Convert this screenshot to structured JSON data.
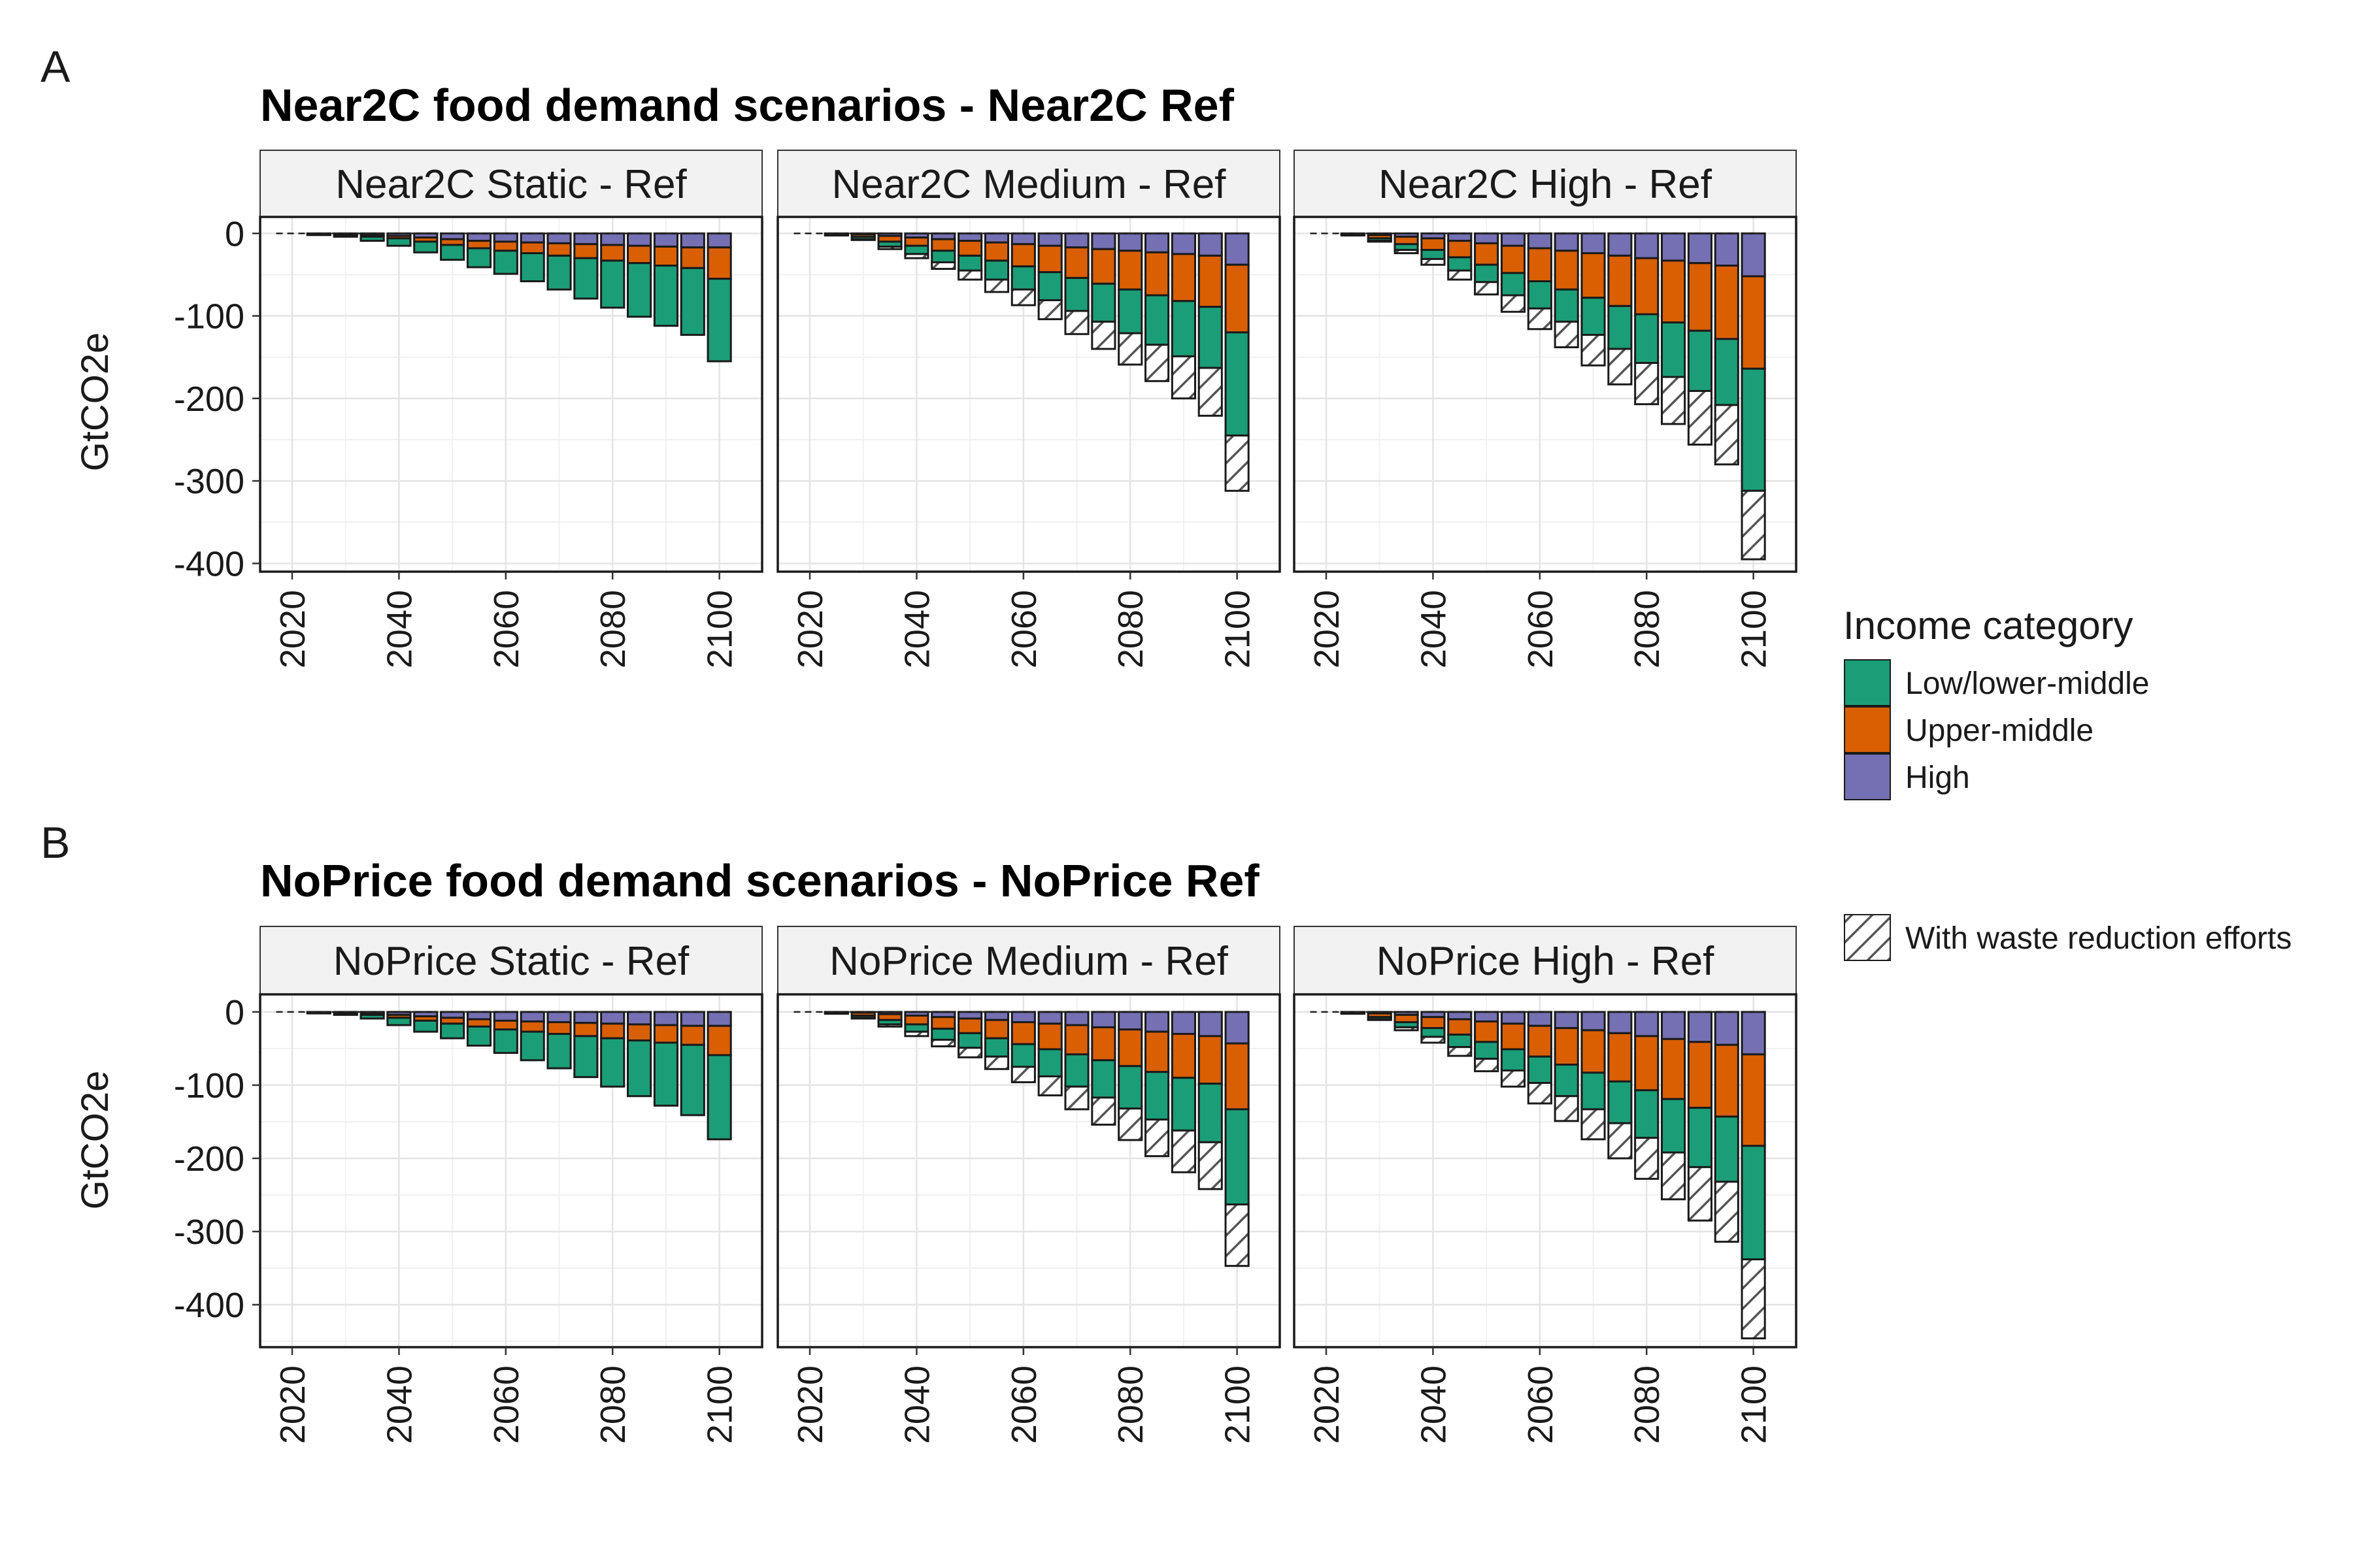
{
  "chart_data": [
    {
      "type": "bar",
      "stacked": true,
      "panel_label": "A",
      "title": "Near2C food demand scenarios - Near2C Ref",
      "ylabel": "GtCO2e",
      "xlabel": "",
      "ylim": [
        -410,
        20
      ],
      "yticks": [
        0,
        -100,
        -200,
        -300,
        -400
      ],
      "xticks": [
        2020,
        2040,
        2060,
        2080,
        2100
      ],
      "grid": true,
      "x": [
        2025,
        2030,
        2035,
        2040,
        2045,
        2050,
        2055,
        2060,
        2065,
        2070,
        2075,
        2080,
        2085,
        2090,
        2095,
        2100
      ],
      "facets": [
        {
          "strip": "Near2C Static - Ref",
          "series": [
            {
              "name": "Low/lower-middle",
              "values": [
                -1,
                -2,
                -5,
                -9,
                -13,
                -18,
                -23,
                -28,
                -34,
                -41,
                -49,
                -57,
                -65,
                -73,
                -81,
                -100
              ]
            },
            {
              "name": "Upper-middle",
              "values": [
                -0.5,
                -1,
                -2,
                -3,
                -5,
                -7,
                -9,
                -11,
                -13,
                -15,
                -17,
                -19,
                -21,
                -23,
                -25,
                -38
              ]
            },
            {
              "name": "High",
              "values": [
                -0.5,
                -1,
                -2,
                -3,
                -5,
                -7,
                -9,
                -10,
                -11,
                -12,
                -13,
                -14,
                -15,
                -16,
                -17,
                -17
              ]
            },
            {
              "name": "With waste reduction efforts",
              "values": [
                0,
                0,
                0,
                0,
                0,
                0,
                0,
                0,
                0,
                0,
                0,
                0,
                0,
                0,
                0,
                0
              ]
            }
          ]
        },
        {
          "strip": "Near2C Medium - Ref",
          "series": [
            {
              "name": "Low/lower-middle",
              "values": [
                -1,
                -3,
                -6,
                -10,
                -14,
                -18,
                -23,
                -28,
                -34,
                -40,
                -46,
                -53,
                -60,
                -67,
                -74,
                -125
              ]
            },
            {
              "name": "Upper-middle",
              "values": [
                -1,
                -3,
                -7,
                -10,
                -14,
                -18,
                -22,
                -27,
                -32,
                -37,
                -42,
                -47,
                -52,
                -57,
                -62,
                -82
              ]
            },
            {
              "name": "High",
              "values": [
                -0.5,
                -1,
                -3,
                -5,
                -7,
                -9,
                -11,
                -13,
                -15,
                -17,
                -19,
                -21,
                -23,
                -25,
                -27,
                -38
              ]
            },
            {
              "name": "With waste reduction efforts",
              "values": [
                0,
                -1,
                -3,
                -5,
                -8,
                -11,
                -15,
                -19,
                -23,
                -28,
                -33,
                -38,
                -44,
                -51,
                -58,
                -67
              ]
            }
          ]
        },
        {
          "strip": "Near2C High - Ref",
          "series": [
            {
              "name": "Low/lower-middle",
              "values": [
                -1,
                -3,
                -7,
                -11,
                -16,
                -21,
                -27,
                -33,
                -39,
                -45,
                -52,
                -59,
                -66,
                -73,
                -80,
                -148
              ]
            },
            {
              "name": "Upper-middle",
              "values": [
                -1,
                -4,
                -9,
                -14,
                -20,
                -26,
                -33,
                -40,
                -47,
                -54,
                -61,
                -68,
                -75,
                -82,
                -89,
                -112
              ]
            },
            {
              "name": "High",
              "values": [
                -0.5,
                -2,
                -4,
                -6,
                -9,
                -12,
                -15,
                -18,
                -21,
                -24,
                -27,
                -30,
                -33,
                -36,
                -39,
                -52
              ]
            },
            {
              "name": "With waste reduction efforts",
              "values": [
                0,
                -1,
                -4,
                -7,
                -11,
                -15,
                -20,
                -25,
                -31,
                -37,
                -43,
                -50,
                -57,
                -65,
                -72,
                -83
              ]
            }
          ]
        }
      ],
      "legend": {
        "title": "Income category",
        "position": "right",
        "entries": [
          "Low/lower-middle",
          "Upper-middle",
          "High"
        ],
        "pattern_entry": "With waste reduction efforts"
      },
      "colors": {
        "Low/lower-middle": "#1b9e77",
        "Upper-middle": "#d95f02",
        "High": "#7570b3"
      }
    },
    {
      "type": "bar",
      "stacked": true,
      "panel_label": "B",
      "title": "NoPrice food demand scenarios - NoPrice Ref",
      "ylabel": "GtCO2e",
      "xlabel": "",
      "ylim": [
        -458,
        24
      ],
      "yticks": [
        0,
        -100,
        -200,
        -300,
        -400
      ],
      "xticks": [
        2020,
        2040,
        2060,
        2080,
        2100
      ],
      "grid": true,
      "x": [
        2025,
        2030,
        2035,
        2040,
        2045,
        2050,
        2055,
        2060,
        2065,
        2070,
        2075,
        2080,
        2085,
        2090,
        2095,
        2100
      ],
      "facets": [
        {
          "strip": "NoPrice Static - Ref",
          "series": [
            {
              "name": "Low/lower-middle",
              "values": [
                -1,
                -2,
                -5,
                -10,
                -15,
                -20,
                -26,
                -32,
                -39,
                -47,
                -56,
                -66,
                -76,
                -86,
                -96,
                -115
              ]
            },
            {
              "name": "Upper-middle",
              "values": [
                -0.5,
                -1,
                -2,
                -4,
                -6,
                -8,
                -10,
                -12,
                -14,
                -16,
                -18,
                -20,
                -22,
                -24,
                -26,
                -40
              ]
            },
            {
              "name": "High",
              "values": [
                -0.5,
                -1,
                -2,
                -4,
                -6,
                -8,
                -10,
                -12,
                -13,
                -14,
                -15,
                -16,
                -17,
                -18,
                -19,
                -19
              ]
            },
            {
              "name": "With waste reduction efforts",
              "values": [
                0,
                0,
                0,
                0,
                0,
                0,
                0,
                0,
                0,
                0,
                0,
                0,
                0,
                0,
                0,
                0
              ]
            }
          ]
        },
        {
          "strip": "NoPrice Medium - Ref",
          "series": [
            {
              "name": "Low/lower-middle",
              "values": [
                -1,
                -3,
                -6,
                -10,
                -15,
                -20,
                -25,
                -31,
                -37,
                -44,
                -51,
                -58,
                -65,
                -72,
                -80,
                -130
              ]
            },
            {
              "name": "Upper-middle",
              "values": [
                -1,
                -4,
                -8,
                -12,
                -16,
                -20,
                -25,
                -30,
                -35,
                -40,
                -45,
                -50,
                -55,
                -60,
                -65,
                -90
              ]
            },
            {
              "name": "High",
              "values": [
                -0.5,
                -1,
                -3,
                -5,
                -7,
                -9,
                -11,
                -14,
                -16,
                -18,
                -21,
                -24,
                -27,
                -30,
                -33,
                -43
              ]
            },
            {
              "name": "With waste reduction efforts",
              "values": [
                0,
                -1,
                -3,
                -6,
                -9,
                -13,
                -17,
                -21,
                -26,
                -31,
                -37,
                -43,
                -50,
                -57,
                -64,
                -84
              ]
            }
          ]
        },
        {
          "strip": "NoPrice High - Ref",
          "series": [
            {
              "name": "Low/lower-middle",
              "values": [
                -1,
                -3,
                -7,
                -12,
                -17,
                -23,
                -29,
                -36,
                -43,
                -50,
                -57,
                -65,
                -73,
                -81,
                -89,
                -155
              ]
            },
            {
              "name": "Upper-middle",
              "values": [
                -1,
                -5,
                -10,
                -15,
                -21,
                -28,
                -35,
                -42,
                -50,
                -58,
                -66,
                -74,
                -82,
                -90,
                -98,
                -125
              ]
            },
            {
              "name": "High",
              "values": [
                -0.5,
                -2,
                -4,
                -7,
                -10,
                -13,
                -16,
                -19,
                -22,
                -25,
                -29,
                -33,
                -37,
                -41,
                -45,
                -58
              ]
            },
            {
              "name": "With waste reduction efforts",
              "values": [
                0,
                -1,
                -4,
                -8,
                -12,
                -17,
                -22,
                -28,
                -34,
                -41,
                -48,
                -56,
                -64,
                -73,
                -82,
                -108
              ]
            }
          ]
        }
      ],
      "legend": {
        "title": "Income category",
        "position": "right",
        "entries": [
          "Low/lower-middle",
          "Upper-middle",
          "High"
        ],
        "pattern_entry": "With waste reduction efforts"
      },
      "colors": {
        "Low/lower-middle": "#1b9e77",
        "Upper-middle": "#d95f02",
        "High": "#7570b3"
      }
    }
  ],
  "legend": {
    "title": "Income category",
    "items": [
      {
        "label": "Low/lower-middle",
        "color": "#1b9e77"
      },
      {
        "label": "Upper-middle",
        "color": "#d95f02"
      },
      {
        "label": "High",
        "color": "#7570b3"
      }
    ],
    "pattern_label": "With waste reduction efforts"
  }
}
